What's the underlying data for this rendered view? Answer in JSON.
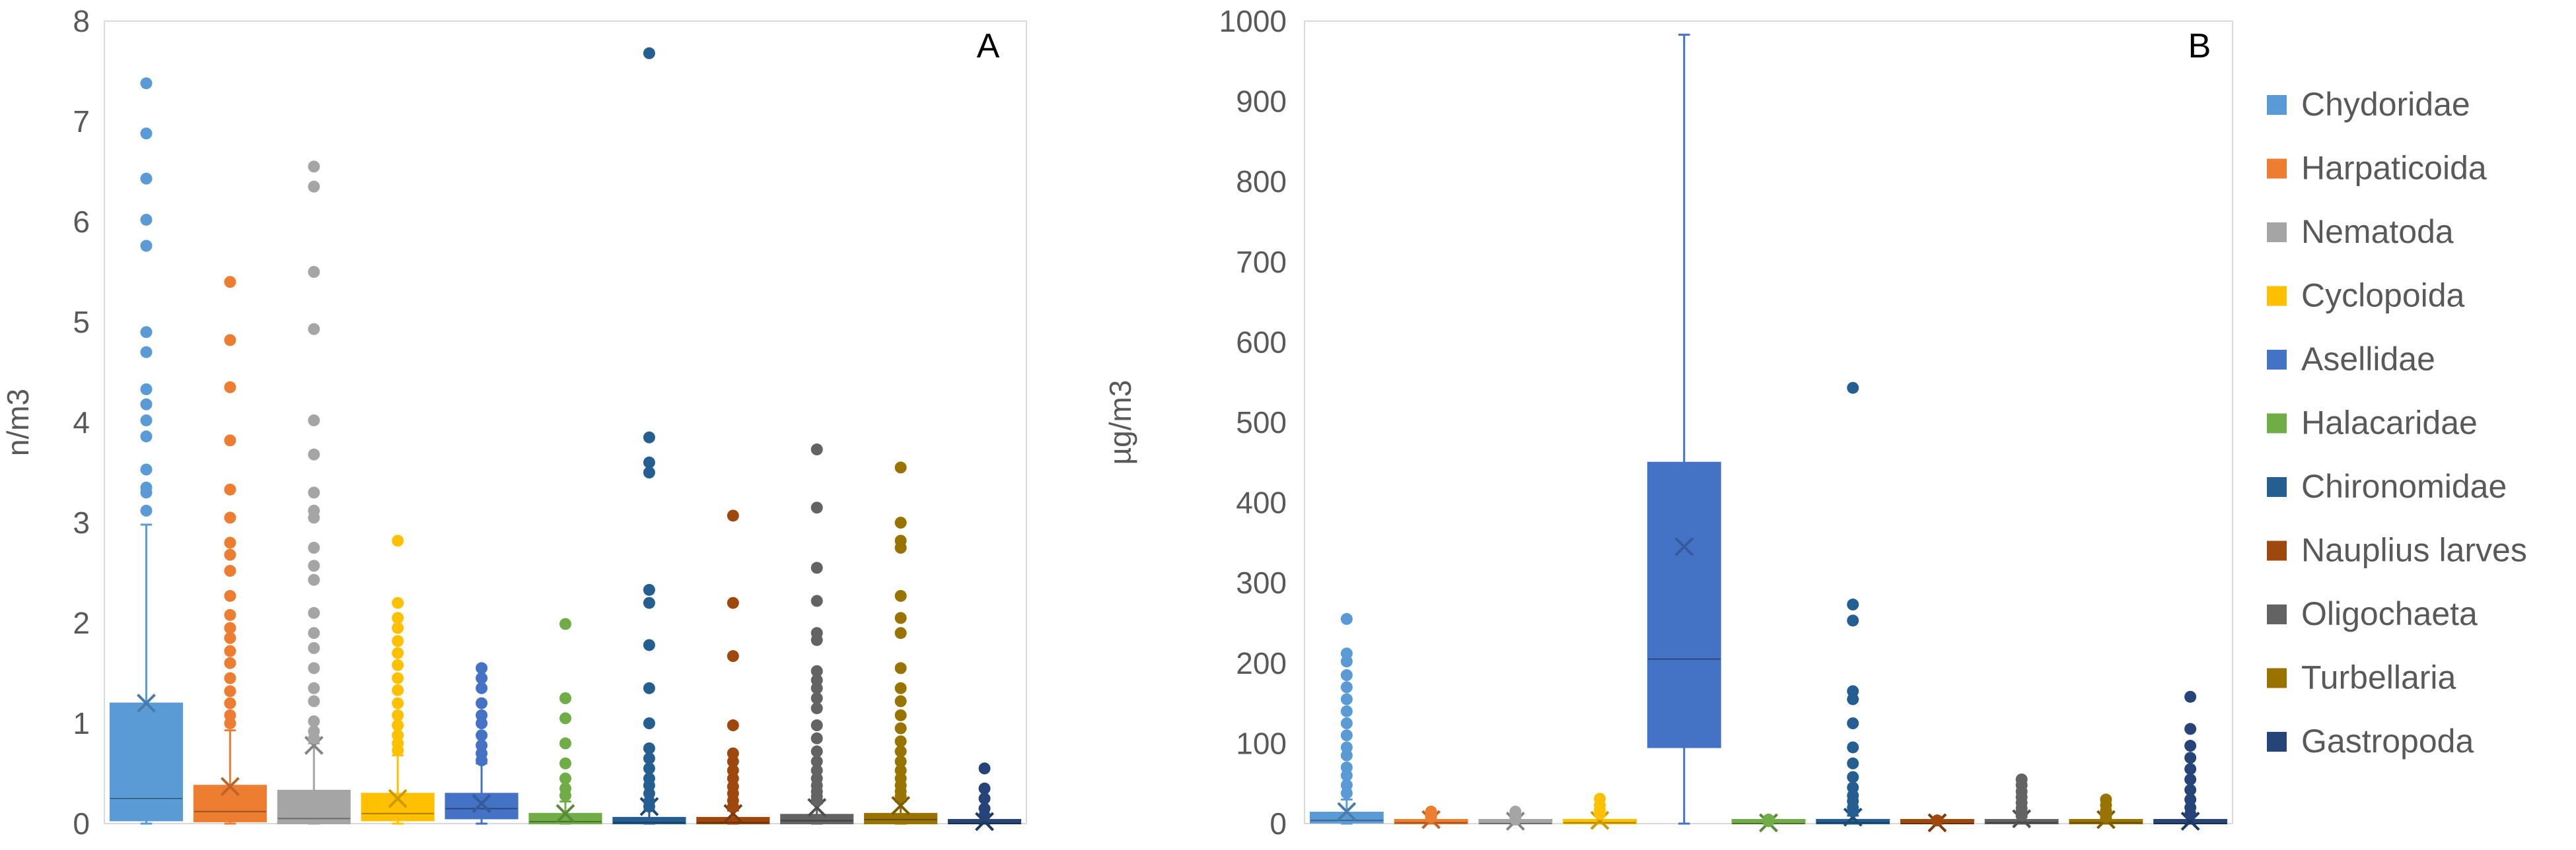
{
  "chart_data": [
    {
      "type": "box",
      "panel_label": "A",
      "ylabel": "n/m3",
      "xlabel": "",
      "ylim": [
        0,
        8
      ],
      "yticks": [
        0,
        1,
        2,
        3,
        4,
        5,
        6,
        7,
        8
      ],
      "grid": false,
      "boxes": [
        {
          "name": "Chydoridae",
          "color": "#5B9BD5",
          "min": 0,
          "q1": 0.03,
          "median": 0.25,
          "q3": 1.2,
          "max": 2.98,
          "mean": 1.2,
          "outliers": [
            7.38,
            6.88,
            6.43,
            6.02,
            5.76,
            4.9,
            4.7,
            4.33,
            4.18,
            4.02,
            3.86,
            3.53,
            3.35,
            3.3,
            3.12
          ]
        },
        {
          "name": "Harpaticoida",
          "color": "#ED7D31",
          "min": 0,
          "q1": 0.02,
          "median": 0.12,
          "q3": 0.38,
          "max": 0.93,
          "mean": 0.37,
          "outliers": [
            5.4,
            4.82,
            4.35,
            3.82,
            3.33,
            3.05,
            2.8,
            2.68,
            2.52,
            2.27,
            2.08,
            1.95,
            1.85,
            1.72,
            1.6,
            1.45,
            1.32,
            1.2,
            1.08,
            1.0
          ]
        },
        {
          "name": "Nematoda",
          "color": "#A5A5A5",
          "min": 0,
          "q1": 0,
          "median": 0.05,
          "q3": 0.33,
          "max": 0.8,
          "mean": 0.78,
          "outliers": [
            6.55,
            6.35,
            5.5,
            4.93,
            4.02,
            3.68,
            3.3,
            3.12,
            3.05,
            2.75,
            2.57,
            2.43,
            2.1,
            1.9,
            1.75,
            1.55,
            1.35,
            1.22,
            1.02,
            0.92,
            0.85
          ]
        },
        {
          "name": "Cyclopoida",
          "color": "#FFC000",
          "min": 0,
          "q1": 0.03,
          "median": 0.1,
          "q3": 0.3,
          "max": 0.68,
          "mean": 0.25,
          "outliers": [
            2.82,
            2.2,
            2.05,
            1.95,
            1.82,
            1.7,
            1.58,
            1.45,
            1.33,
            1.2,
            1.08,
            0.98,
            0.88,
            0.8,
            0.73
          ]
        },
        {
          "name": "Asellidae",
          "color": "#4472C4",
          "min": 0,
          "q1": 0.05,
          "median": 0.15,
          "q3": 0.3,
          "max": 0.6,
          "mean": 0.2,
          "outliers": [
            1.55,
            1.45,
            1.35,
            1.2,
            1.08,
            1.0,
            0.88,
            0.78,
            0.7,
            0.63
          ]
        },
        {
          "name": "Halacaridae",
          "color": "#70AD47",
          "min": 0,
          "q1": 0,
          "median": 0.02,
          "q3": 0.1,
          "max": 0.22,
          "mean": 0.1,
          "outliers": [
            1.99,
            1.25,
            1.05,
            0.8,
            0.6,
            0.45,
            0.35,
            0.28
          ]
        },
        {
          "name": "Chironomidae",
          "color": "#255E91",
          "min": 0,
          "q1": 0,
          "median": 0.01,
          "q3": 0.06,
          "max": 0.13,
          "mean": 0.17,
          "outliers": [
            7.68,
            3.85,
            3.6,
            3.5,
            2.33,
            2.2,
            1.78,
            1.35,
            1.0,
            0.75,
            0.65,
            0.55,
            0.45,
            0.38,
            0.3,
            0.22,
            0.17
          ]
        },
        {
          "name": "Nauplius larves",
          "color": "#9E480E",
          "min": 0,
          "q1": 0,
          "median": 0.01,
          "q3": 0.06,
          "max": 0.13,
          "mean": 0.1,
          "outliers": [
            3.07,
            2.2,
            1.67,
            0.98,
            0.7,
            0.62,
            0.53,
            0.45,
            0.37,
            0.3,
            0.23,
            0.17
          ]
        },
        {
          "name": "Oligochaeta",
          "color": "#636363",
          "min": 0,
          "q1": 0,
          "median": 0.03,
          "q3": 0.09,
          "max": 0.2,
          "mean": 0.16,
          "outliers": [
            3.73,
            3.15,
            2.55,
            2.22,
            1.9,
            1.83,
            1.52,
            1.43,
            1.35,
            1.25,
            1.15,
            0.98,
            0.85,
            0.72,
            0.62,
            0.53,
            0.45,
            0.38,
            0.32,
            0.27,
            0.23
          ]
        },
        {
          "name": "Turbellaria",
          "color": "#997300",
          "min": 0,
          "q1": 0,
          "median": 0.04,
          "q3": 0.1,
          "max": 0.22,
          "mean": 0.18,
          "outliers": [
            3.55,
            3.0,
            2.82,
            2.75,
            2.27,
            2.05,
            1.9,
            1.55,
            1.35,
            1.22,
            1.08,
            0.95,
            0.82,
            0.72,
            0.62,
            0.53,
            0.45,
            0.38,
            0.32,
            0.27
          ]
        },
        {
          "name": "Gastropoda",
          "color": "#264478",
          "min": 0,
          "q1": 0,
          "median": 0,
          "q3": 0.01,
          "max": 0.02,
          "mean": 0.02,
          "outliers": [
            0.55,
            0.35,
            0.25,
            0.15,
            0.08
          ]
        }
      ]
    },
    {
      "type": "box",
      "panel_label": "B",
      "ylabel": "µg/m3",
      "xlabel": "",
      "ylim": [
        0,
        1000
      ],
      "yticks": [
        0,
        100,
        200,
        300,
        400,
        500,
        600,
        700,
        800,
        900,
        1000
      ],
      "grid": false,
      "boxes": [
        {
          "name": "Chydoridae",
          "color": "#5B9BD5",
          "min": 0,
          "q1": 1,
          "median": 4,
          "q3": 14,
          "max": 30,
          "mean": 15,
          "outliers": [
            255,
            212,
            202,
            185,
            170,
            155,
            140,
            125,
            110,
            95,
            85,
            70,
            60,
            48,
            38
          ]
        },
        {
          "name": "Harpaticoida",
          "color": "#ED7D31",
          "min": 0,
          "q1": 0,
          "median": 1,
          "q3": 3,
          "max": 6,
          "mean": 5,
          "outliers": [
            15,
            11,
            8
          ]
        },
        {
          "name": "Nematoda",
          "color": "#A5A5A5",
          "min": 0,
          "q1": 0,
          "median": 0,
          "q3": 1,
          "max": 2,
          "mean": 3,
          "outliers": [
            15,
            11,
            8,
            5
          ]
        },
        {
          "name": "Cyclopoida",
          "color": "#FFC000",
          "min": 0,
          "q1": 0,
          "median": 1,
          "q3": 5,
          "max": 10,
          "mean": 4,
          "outliers": [
            31,
            23,
            17,
            12
          ]
        },
        {
          "name": "Asellidae",
          "color": "#4472C4",
          "min": 0,
          "q1": 95,
          "median": 205,
          "q3": 450,
          "max": 983,
          "mean": 345,
          "outliers": []
        },
        {
          "name": "Halacaridae",
          "color": "#70AD47",
          "min": 0,
          "q1": 0,
          "median": 0,
          "q3": 1,
          "max": 2,
          "mean": 1,
          "outliers": [
            5,
            3
          ]
        },
        {
          "name": "Chironomidae",
          "color": "#255E91",
          "min": 0,
          "q1": 0,
          "median": 1,
          "q3": 5,
          "max": 10,
          "mean": 8,
          "outliers": [
            543,
            273,
            253,
            165,
            155,
            125,
            95,
            75,
            58,
            45,
            35,
            28,
            20,
            15
          ]
        },
        {
          "name": "Nauplius larves",
          "color": "#9E480E",
          "min": 0,
          "q1": 0,
          "median": 0,
          "q3": 1,
          "max": 2,
          "mean": 1,
          "outliers": [
            4
          ]
        },
        {
          "name": "Oligochaeta",
          "color": "#636363",
          "min": 0,
          "q1": 0,
          "median": 1,
          "q3": 4,
          "max": 8,
          "mean": 6,
          "outliers": [
            55,
            48,
            40,
            33,
            26,
            19,
            14,
            10
          ]
        },
        {
          "name": "Turbellaria",
          "color": "#997300",
          "min": 0,
          "q1": 0,
          "median": 1,
          "q3": 3,
          "max": 6,
          "mean": 5,
          "outliers": [
            30,
            23,
            16,
            11,
            8
          ]
        },
        {
          "name": "Gastropoda",
          "color": "#264478",
          "min": 0,
          "q1": 0,
          "median": 0,
          "q3": 2,
          "max": 4,
          "mean": 3,
          "outliers": [
            158,
            118,
            97,
            82,
            68,
            55,
            42,
            30,
            20,
            12
          ]
        }
      ]
    }
  ],
  "legend": {
    "position": "right",
    "entries": [
      {
        "label": "Chydoridae",
        "color": "#5B9BD5"
      },
      {
        "label": "Harpaticoida",
        "color": "#ED7D31"
      },
      {
        "label": "Nematoda",
        "color": "#A5A5A5"
      },
      {
        "label": "Cyclopoida",
        "color": "#FFC000"
      },
      {
        "label": "Asellidae",
        "color": "#4472C4"
      },
      {
        "label": "Halacaridae",
        "color": "#70AD47"
      },
      {
        "label": "Chironomidae",
        "color": "#255E91"
      },
      {
        "label": "Nauplius larves",
        "color": "#9E480E"
      },
      {
        "label": "Oligochaeta",
        "color": "#636363"
      },
      {
        "label": "Turbellaria",
        "color": "#997300"
      },
      {
        "label": "Gastropoda",
        "color": "#264478"
      }
    ]
  }
}
